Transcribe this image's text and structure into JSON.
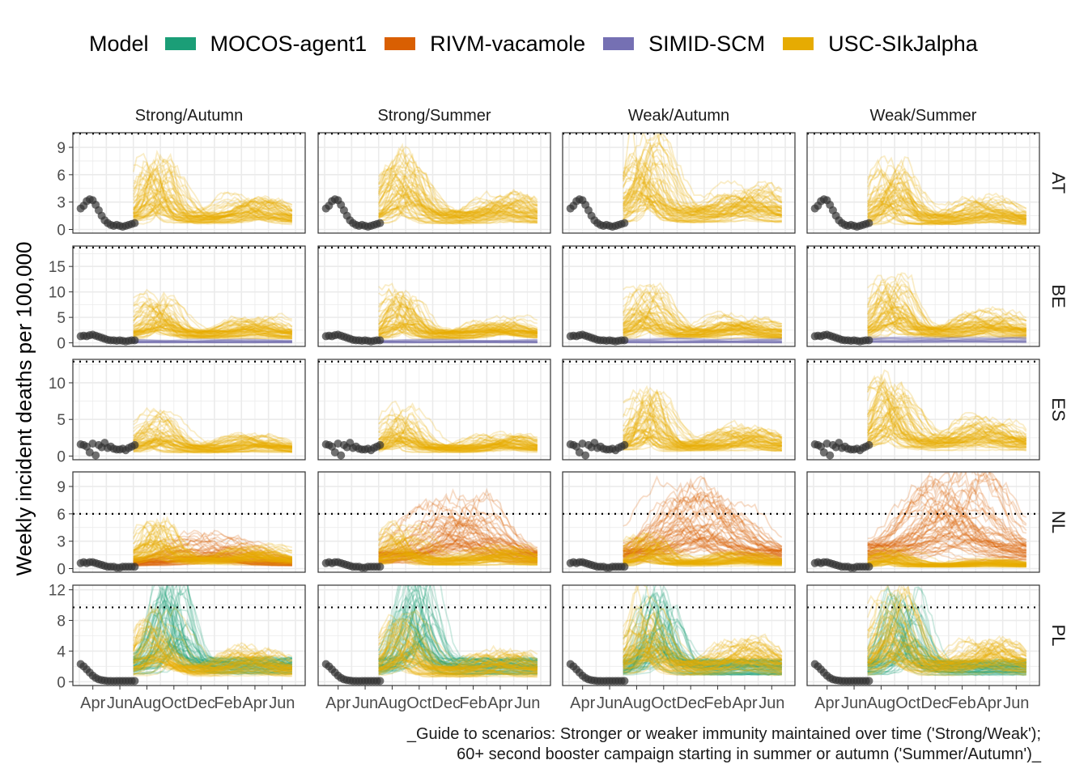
{
  "chart_data": {
    "type": "line",
    "title": "",
    "legend_title": "Model",
    "legend_position": "top",
    "ylabel": "Weekly incident deaths per 100,000",
    "xlabel": "",
    "x_tick_labels": [
      "Apr",
      "Jun",
      "Aug",
      "Oct",
      "Dec",
      "Feb",
      "Apr",
      "Jun"
    ],
    "x_domain_months": [
      0,
      16
    ],
    "models": [
      {
        "name": "MOCOS-agent1",
        "color": "#1B9E77"
      },
      {
        "name": "RIVM-vacamole",
        "color": "#D95F02"
      },
      {
        "name": "SIMID-SCM",
        "color": "#7570B3"
      },
      {
        "name": "USC-SIkJalpha",
        "color": "#E6AB02"
      }
    ],
    "observed_color": "#333333",
    "scenarios": [
      "Strong/Autumn",
      "Strong/Summer",
      "Weak/Autumn",
      "Weak/Summer"
    ],
    "facet_rows": [
      {
        "location": "AT",
        "ylim": [
          -0.4,
          10.6
        ],
        "yticks": [
          0,
          3,
          6,
          9
        ],
        "reference_line": 10.5,
        "observed": [
          2.3,
          2.6,
          3.1,
          3.3,
          3.2,
          2.7,
          2.1,
          1.5,
          1.0,
          0.7,
          0.5,
          0.4,
          0.5,
          0.4,
          0.3,
          0.4,
          0.5,
          0.6,
          0.7
        ]
      },
      {
        "location": "BE",
        "ylim": [
          -0.7,
          19
        ],
        "yticks": [
          0,
          5,
          10,
          15
        ],
        "reference_line": 18.7,
        "observed": [
          1.3,
          1.4,
          1.3,
          1.5,
          1.6,
          1.4,
          1.2,
          1.0,
          0.8,
          0.6,
          0.5,
          0.5,
          0.4,
          0.5,
          0.4,
          0.3,
          0.4,
          0.5,
          0.5
        ]
      },
      {
        "location": "ES",
        "ylim": [
          -0.5,
          13.2
        ],
        "yticks": [
          0,
          5,
          10
        ],
        "reference_line": 12.9,
        "observed": [
          1.6,
          1.5,
          1.3,
          0.5,
          1.7,
          0.1,
          1.5,
          1.2,
          1.8,
          1.1,
          1.3,
          1.0,
          0.9,
          0.9,
          1.0,
          0.8,
          1.1,
          1.3,
          1.5
        ]
      },
      {
        "location": "NL",
        "ylim": [
          -0.4,
          10.6
        ],
        "yticks": [
          0,
          3,
          6,
          9
        ],
        "reference_line": 6.0,
        "observed": [
          0.6,
          0.7,
          0.6,
          0.7,
          0.7,
          0.6,
          0.5,
          0.4,
          0.3,
          0.2,
          0.2,
          0.2,
          0.1,
          0.1,
          0.2,
          0.2,
          0.2,
          0.2,
          0.2
        ]
      },
      {
        "location": "PL",
        "ylim": [
          -0.5,
          12.6
        ],
        "yticks": [
          0,
          4,
          8,
          12
        ],
        "reference_line": 9.7,
        "observed": [
          2.3,
          2.0,
          1.6,
          1.2,
          0.8,
          0.5,
          0.3,
          0.2,
          0.15,
          0.1,
          0.1,
          0.08,
          0.1,
          0.1,
          0.1,
          0.1,
          0.1,
          0.1,
          0.1
        ]
      }
    ],
    "ensemble_peaks": {
      "AT": {
        "USC-SIkJalpha": [
          7.0,
          7.5,
          9.5,
          6.5
        ]
      },
      "BE": {
        "USC-SIkJalpha": [
          9.0,
          9.0,
          10.0,
          12.0
        ],
        "SIMID-SCM": [
          1.0,
          1.0,
          1.2,
          1.5
        ]
      },
      "ES": {
        "USC-SIkJalpha": [
          5.5,
          6.0,
          8.0,
          9.5
        ]
      },
      "NL": {
        "RIVM-vacamole": [
          3.5,
          7.0,
          8.0,
          10.3
        ],
        "USC-SIkJalpha": [
          4.5,
          4.5,
          3.5,
          2.0
        ]
      },
      "PL": {
        "MOCOS-agent1": [
          12.0,
          12.0,
          11.0,
          11.0
        ],
        "USC-SIkJalpha": [
          8.0,
          7.5,
          10.5,
          10.5
        ]
      }
    }
  },
  "caption": {
    "line1": "_Guide to scenarios: Stronger or weaker immunity maintained over time ('Strong/Weak');",
    "line2": "60+ second booster campaign starting in summer or autumn ('Summer/Autumn')_"
  }
}
